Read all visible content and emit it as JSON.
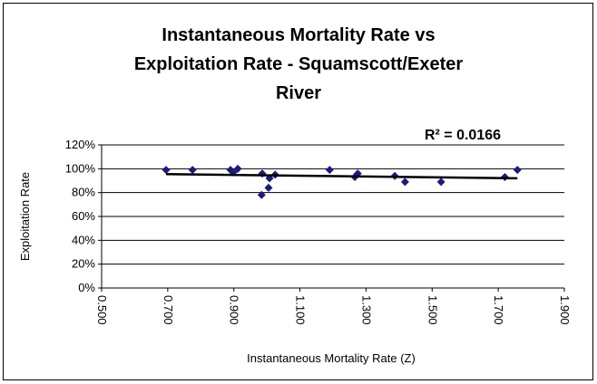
{
  "chart_data": {
    "type": "scatter",
    "title": [
      "Instantaneous Mortality Rate vs",
      "Exploitation Rate - Squamscott/Exeter",
      "River"
    ],
    "annotation": "R² = 0.0166",
    "x_label": "Instantaneous Mortality Rate (Z)",
    "y_label": "Exploitation Rate",
    "series": [
      {
        "name": "Exploitation Rate",
        "color": "#1a1a80",
        "x": [
          0.695,
          0.775,
          0.89,
          0.898,
          0.912,
          0.986,
          0.984,
          1.005,
          1.008,
          1.025,
          1.19,
          1.266,
          1.275,
          1.387,
          1.418,
          1.527,
          1.72,
          1.758
        ],
        "values": [
          99,
          99,
          99,
          97,
          100,
          96,
          78,
          84,
          92,
          95,
          99,
          93,
          96,
          94,
          89,
          89,
          93,
          99
        ]
      }
    ],
    "trendline": {
      "color": "#000000",
      "x": [
        0.695,
        1.758
      ],
      "values": [
        95.5,
        92
      ]
    },
    "xlim": [
      0.5,
      1.9
    ],
    "xticks": [
      {
        "value": 0.5,
        "label": "0.500"
      },
      {
        "value": 0.7,
        "label": "0.700"
      },
      {
        "value": 0.9,
        "label": "0.900"
      },
      {
        "value": 1.1,
        "label": "1.100"
      },
      {
        "value": 1.3,
        "label": "1.300"
      },
      {
        "value": 1.5,
        "label": "1.500"
      },
      {
        "value": 1.7,
        "label": "1.700"
      },
      {
        "value": 1.9,
        "label": "1.900"
      }
    ],
    "ylim": [
      0,
      120
    ],
    "yticks": [
      {
        "value": 0,
        "label": "0%"
      },
      {
        "value": 20,
        "label": "20%"
      },
      {
        "value": 40,
        "label": "40%"
      },
      {
        "value": 60,
        "label": "60%"
      },
      {
        "value": 80,
        "label": "80%"
      },
      {
        "value": 100,
        "label": "100%"
      },
      {
        "value": 120,
        "label": "120%"
      }
    ],
    "grid": true
  }
}
